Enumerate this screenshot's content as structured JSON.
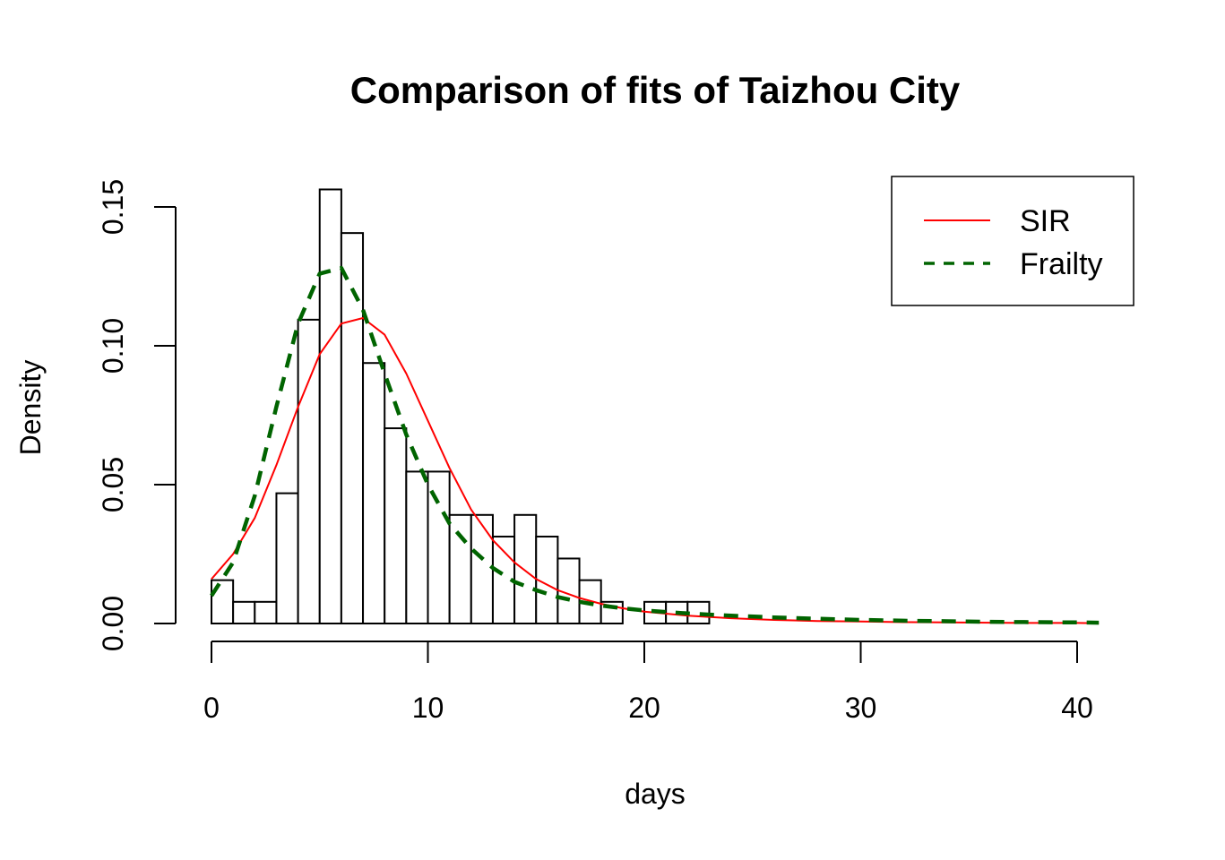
{
  "chart_data": {
    "type": "histogram",
    "title": "Comparison of fits of Taizhou City",
    "xlabel": "days",
    "ylabel": "Density",
    "xlim": [
      0,
      41
    ],
    "ylim": [
      0,
      0.15
    ],
    "x_ticks": [
      0,
      10,
      20,
      30,
      40
    ],
    "x_tick_labels": [
      "0",
      "10",
      "20",
      "30",
      "40"
    ],
    "y_ticks": [
      0,
      0.05,
      0.1,
      0.15
    ],
    "y_tick_labels": [
      "0.00",
      "0.05",
      "0.10",
      "0.15"
    ],
    "grid": false,
    "legend_position": "top-right",
    "bins": {
      "start": 0,
      "width": 1,
      "density": [
        0.0156,
        0.0078,
        0.0078,
        0.0469,
        0.1094,
        0.1563,
        0.1406,
        0.0938,
        0.0703,
        0.0547,
        0.0547,
        0.0391,
        0.0391,
        0.0313,
        0.0391,
        0.0313,
        0.0234,
        0.0156,
        0.0078,
        0.0,
        0.0078,
        0.0078,
        0.0078
      ]
    },
    "series": [
      {
        "name": "SIR",
        "color": "#ff0000",
        "style": "solid",
        "x": [
          0,
          1,
          2,
          3,
          4,
          5,
          6,
          7,
          8,
          9,
          10,
          11,
          12,
          13,
          14,
          15,
          16,
          17,
          18,
          19,
          20,
          22,
          24,
          26,
          28,
          30,
          32,
          34,
          36,
          38,
          40,
          41
        ],
        "values": [
          0.016,
          0.025,
          0.038,
          0.057,
          0.078,
          0.097,
          0.108,
          0.11,
          0.104,
          0.09,
          0.073,
          0.056,
          0.041,
          0.03,
          0.022,
          0.016,
          0.012,
          0.0092,
          0.0071,
          0.0055,
          0.0043,
          0.0028,
          0.0019,
          0.0013,
          0.0009,
          0.0007,
          0.0005,
          0.0004,
          0.0003,
          0.0002,
          0.0002,
          0.0001
        ]
      },
      {
        "name": "Frailty",
        "color": "#006400",
        "style": "dashed",
        "x": [
          0,
          1,
          2,
          3,
          4,
          5,
          6,
          7,
          8,
          9,
          10,
          11,
          12,
          13,
          14,
          15,
          16,
          17,
          18,
          19,
          20,
          22,
          24,
          26,
          28,
          30,
          32,
          34,
          36,
          38,
          40,
          41
        ],
        "values": [
          0.01,
          0.022,
          0.046,
          0.078,
          0.108,
          0.126,
          0.128,
          0.113,
          0.09,
          0.068,
          0.05,
          0.036,
          0.027,
          0.02,
          0.015,
          0.012,
          0.0095,
          0.0078,
          0.0065,
          0.0055,
          0.0047,
          0.0036,
          0.0028,
          0.0022,
          0.0017,
          0.0013,
          0.001,
          0.0008,
          0.0006,
          0.0005,
          0.0004,
          0.0003
        ]
      }
    ]
  }
}
